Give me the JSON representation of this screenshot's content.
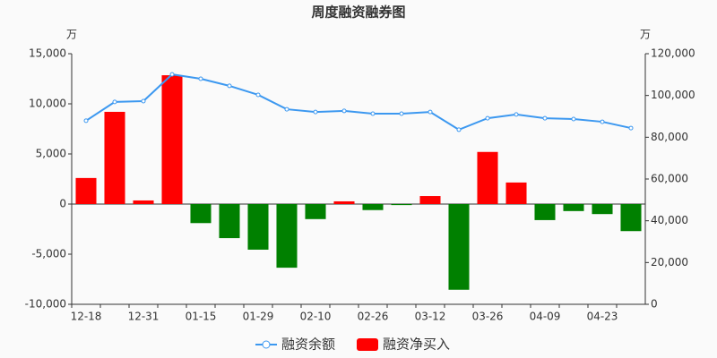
{
  "chart_data": {
    "type": "bar_line",
    "title": "周度融资融券图",
    "y_unit": "万",
    "y2_unit": "万",
    "categories": [
      "12-18",
      null,
      "12-31",
      null,
      "01-15",
      null,
      "01-29",
      null,
      "02-10",
      null,
      "02-26",
      null,
      "03-12",
      null,
      "03-26",
      null,
      "04-09",
      null,
      "04-23",
      null
    ],
    "series": [
      {
        "name": "融资余额",
        "type": "line",
        "axis": "y2",
        "color": "#3c98f0",
        "values": [
          87900,
          96900,
          97300,
          110100,
          108000,
          104600,
          100300,
          93400,
          92100,
          92600,
          91300,
          91300,
          92100,
          83600,
          89100,
          90900,
          89100,
          88700,
          87400,
          84400
        ]
      },
      {
        "name": "融资净买入",
        "type": "bar",
        "axis": "y",
        "color": "#ff0000",
        "negative_color": "#008000",
        "values": [
          2600,
          9200,
          360,
          12850,
          -1900,
          -3400,
          -4550,
          -6350,
          -1500,
          270,
          -600,
          -100,
          800,
          -8550,
          5200,
          2150,
          -1600,
          -700,
          -1000,
          -2700
        ]
      }
    ],
    "ylim": [
      -10000,
      15000
    ],
    "yticks": [
      {
        "value": -10000,
        "label": "-10,000"
      },
      {
        "value": -5000,
        "label": "-5,000"
      },
      0,
      {
        "value": 5000,
        "label": "5,000"
      },
      {
        "value": 10000,
        "label": "10,000"
      },
      {
        "value": 15000,
        "label": "15,000"
      }
    ],
    "y2lim": [
      0,
      120000
    ],
    "y2ticks": [
      0,
      {
        "value": 20000,
        "label": "20,000"
      },
      {
        "value": 40000,
        "label": "40,000"
      },
      {
        "value": 60000,
        "label": "60,000"
      },
      {
        "value": 80000,
        "label": "80,000"
      },
      {
        "value": 100000,
        "label": "100,000"
      },
      {
        "value": 120000,
        "label": "120,000"
      }
    ],
    "grid": false,
    "legend": "bottom"
  }
}
